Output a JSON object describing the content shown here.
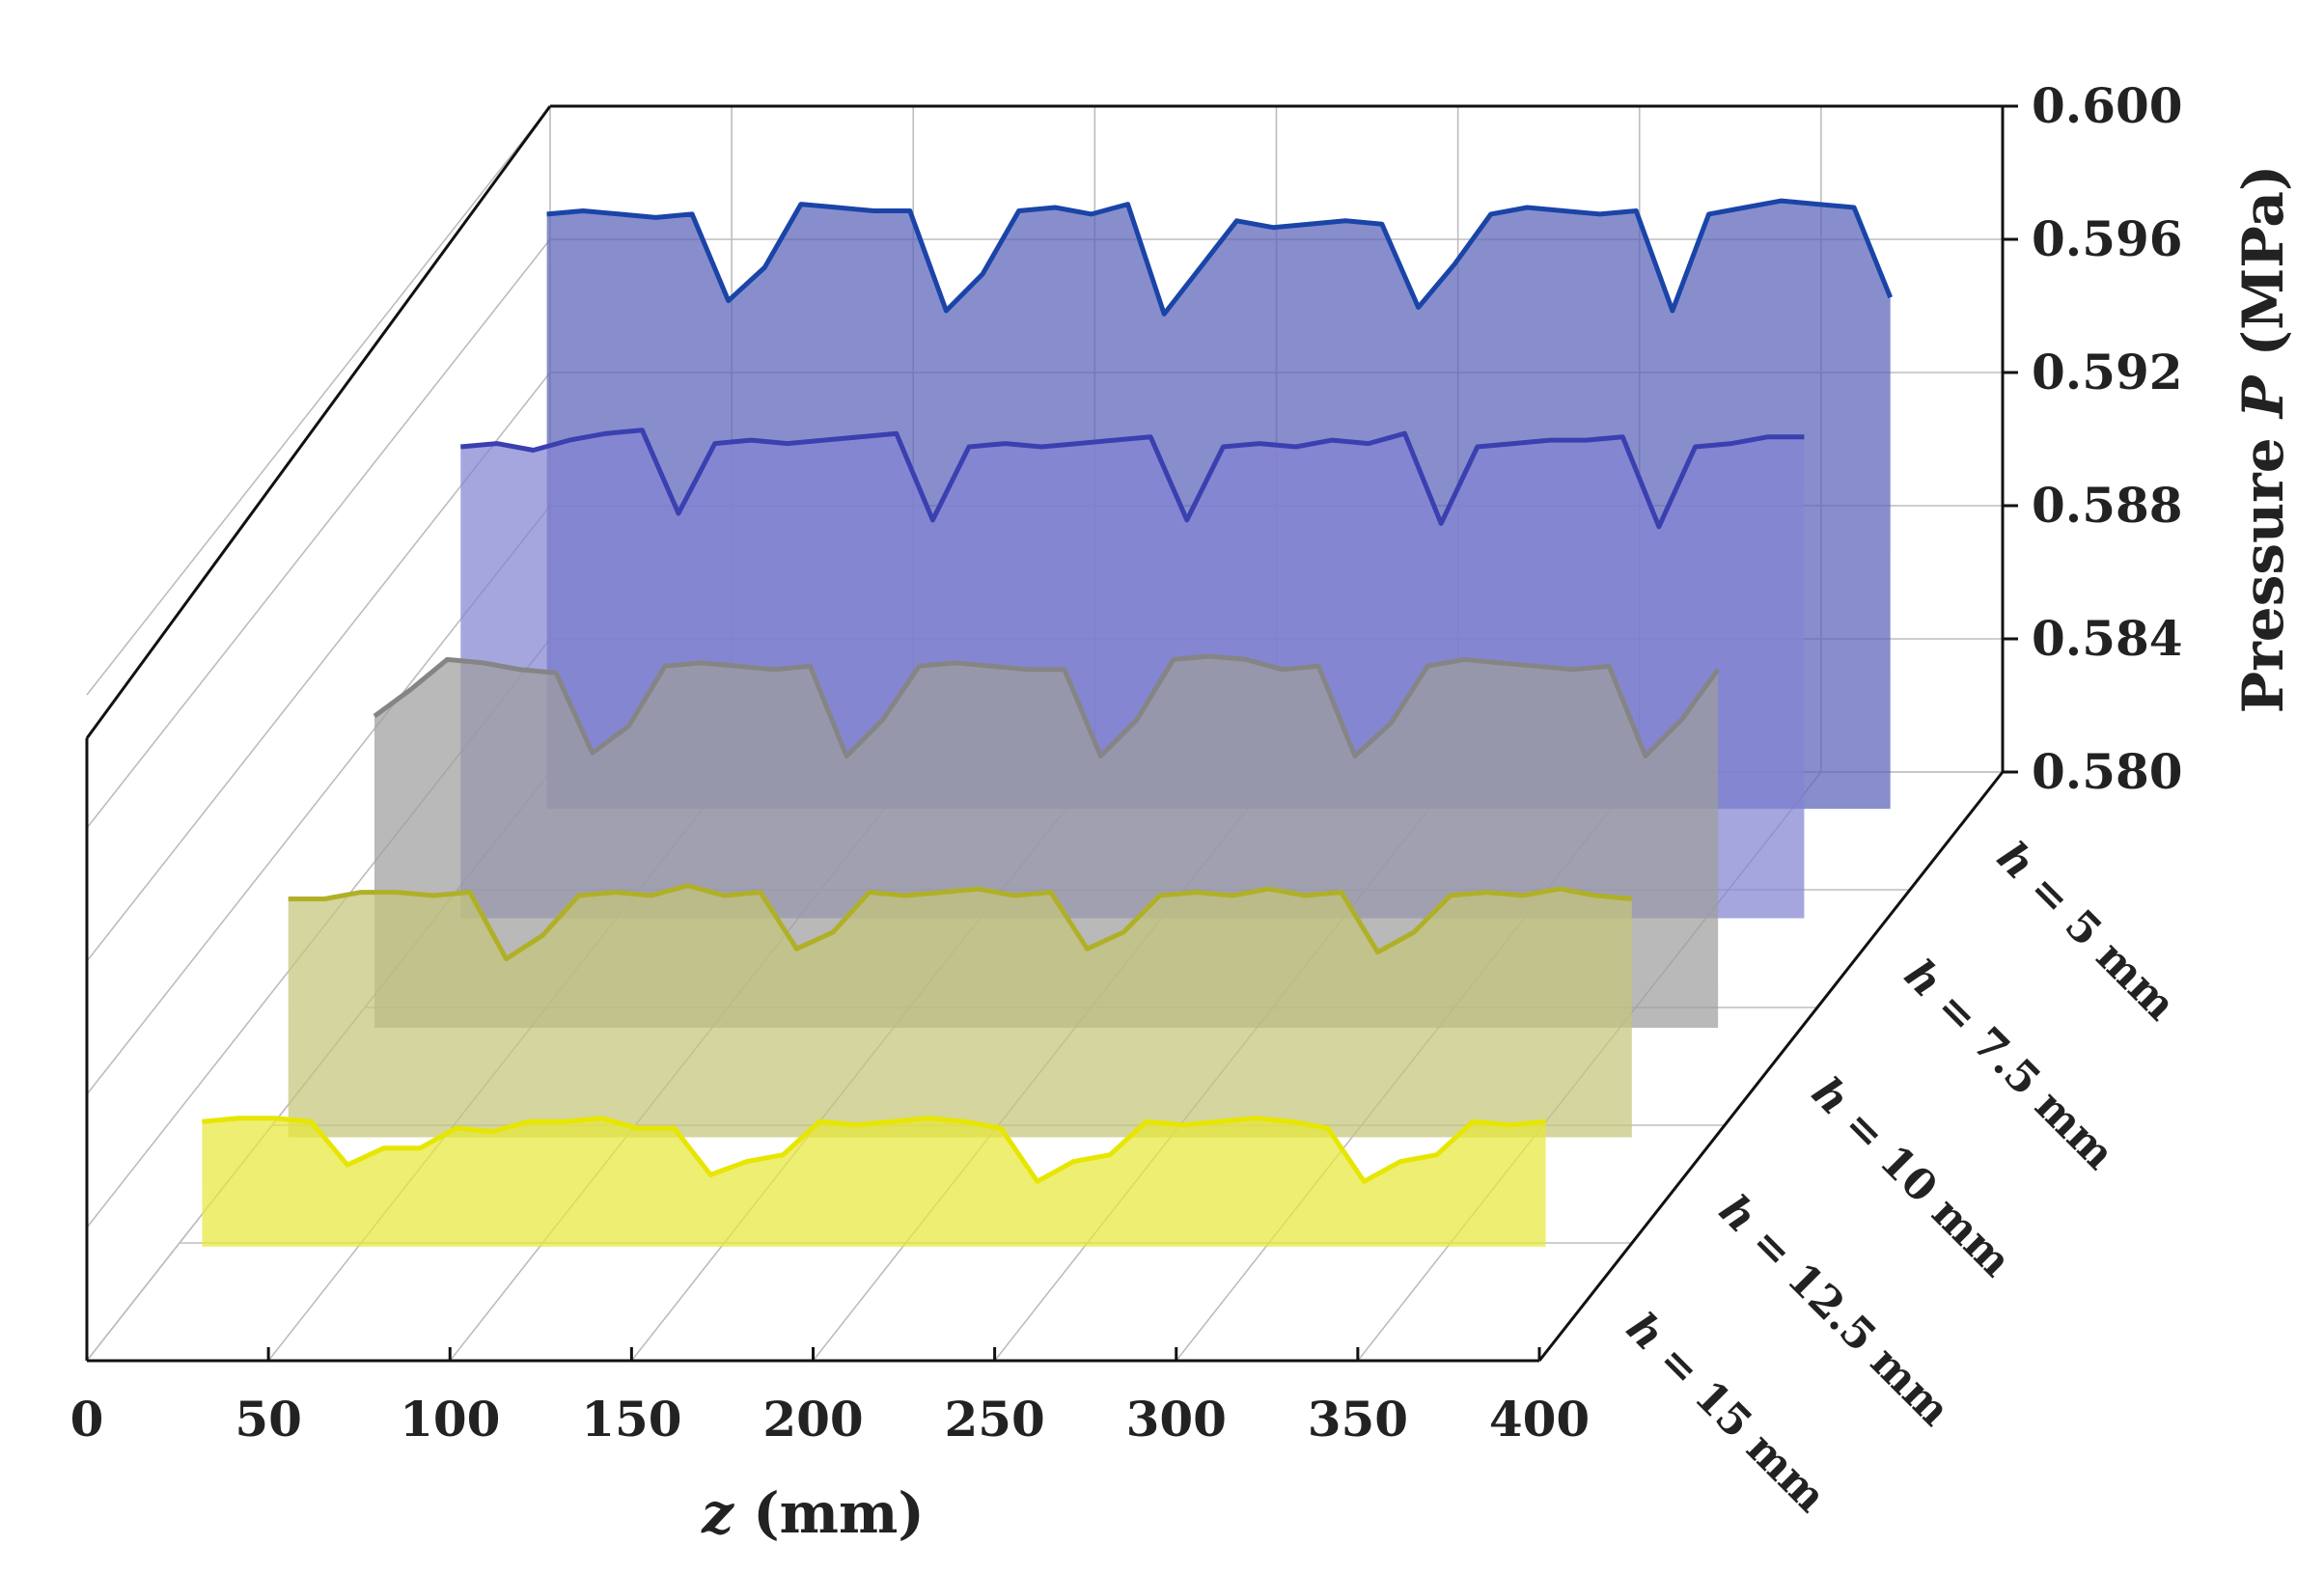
{
  "chart_data": {
    "type": "area",
    "title": "",
    "xlabel_var": "z",
    "xlabel_unit": " (mm)",
    "ylabel_prefix": "Pressure ",
    "ylabel_var": "P",
    "ylabel_unit": " (MPa)",
    "xlim": [
      0,
      400
    ],
    "ylim": [
      0.58,
      0.6
    ],
    "x_ticks": [
      "0",
      "50",
      "100",
      "150",
      "200",
      "250",
      "300",
      "350",
      "400"
    ],
    "y_ticks": [
      "0.580",
      "0.584",
      "0.588",
      "0.592",
      "0.596",
      "0.600"
    ],
    "x": [
      0,
      10,
      20,
      30,
      40,
      50,
      60,
      70,
      80,
      90,
      100,
      110,
      120,
      130,
      140,
      150,
      160,
      170,
      180,
      190,
      200,
      210,
      220,
      230,
      240,
      250,
      260,
      270,
      280,
      290,
      300,
      310,
      320,
      330,
      340,
      350,
      360,
      370
    ],
    "series": [
      {
        "name": "h = 5 mm",
        "label_var": "h",
        "label_rest": " = 5 mm",
        "color": "#1a44a8",
        "fill": "#5a63b9",
        "values": [
          0.5967,
          0.5968,
          0.5967,
          0.5966,
          0.5967,
          0.5941,
          0.5951,
          0.597,
          0.5969,
          0.5968,
          0.5968,
          0.5938,
          0.5949,
          0.5968,
          0.5969,
          0.5967,
          0.597,
          0.5937,
          0.5951,
          0.5965,
          0.5963,
          0.5964,
          0.5965,
          0.5964,
          0.5939,
          0.5952,
          0.5967,
          0.5969,
          0.5968,
          0.5967,
          0.5968,
          0.5938,
          0.5967,
          0.5969,
          0.5971,
          0.597,
          0.5969,
          0.5942
        ]
      },
      {
        "name": "h = 7.5 mm",
        "label_var": "h",
        "label_rest": " = 7.5 mm",
        "color": "#3a40b0",
        "fill": "#8484d2",
        "values": [
          0.593,
          0.5931,
          0.5929,
          0.5932,
          0.5934,
          0.5935,
          0.591,
          0.5931,
          0.5932,
          0.5931,
          0.5932,
          0.5933,
          0.5934,
          0.5908,
          0.593,
          0.5931,
          0.593,
          0.5931,
          0.5932,
          0.5933,
          0.5908,
          0.593,
          0.5931,
          0.593,
          0.5932,
          0.5931,
          0.5934,
          0.5907,
          0.593,
          0.5931,
          0.5932,
          0.5932,
          0.5933,
          0.5906,
          0.593,
          0.5931,
          0.5933,
          0.5933
        ]
      },
      {
        "name": "h = 10 mm",
        "label_var": "h",
        "label_rest": " = 10 mm",
        "color": "#858585",
        "fill": "#9e9e9e",
        "values": [
          0.5882,
          0.589,
          0.5899,
          0.5898,
          0.5896,
          0.5895,
          0.5871,
          0.5879,
          0.5897,
          0.5898,
          0.5897,
          0.5896,
          0.5897,
          0.587,
          0.5881,
          0.5897,
          0.5898,
          0.5897,
          0.5896,
          0.5896,
          0.587,
          0.5881,
          0.5899,
          0.59,
          0.5899,
          0.5896,
          0.5897,
          0.587,
          0.588,
          0.5897,
          0.5899,
          0.5898,
          0.5897,
          0.5896,
          0.5897,
          0.587,
          0.5881,
          0.5896
        ]
      },
      {
        "name": "h = 12.5 mm",
        "label_var": "h",
        "label_rest": " = 12.5 mm",
        "color": "#b0b028",
        "fill": "#c5c57a",
        "values": [
          0.586,
          0.586,
          0.5862,
          0.5862,
          0.5861,
          0.5862,
          0.5842,
          0.5849,
          0.5861,
          0.5862,
          0.5861,
          0.5864,
          0.5861,
          0.5862,
          0.5845,
          0.585,
          0.5862,
          0.5861,
          0.5862,
          0.5863,
          0.5861,
          0.5862,
          0.5845,
          0.585,
          0.5861,
          0.5862,
          0.5861,
          0.5863,
          0.5861,
          0.5862,
          0.5844,
          0.585,
          0.5861,
          0.5862,
          0.5861,
          0.5863,
          0.5861,
          0.586
        ]
      },
      {
        "name": "h = 15 mm",
        "label_var": "h",
        "label_rest": " = 15 mm",
        "color": "#e6e600",
        "fill": "#e8e83c",
        "values": [
          0.5826,
          0.5827,
          0.5827,
          0.5826,
          0.5813,
          0.5818,
          0.5818,
          0.5824,
          0.5823,
          0.5826,
          0.5826,
          0.5827,
          0.5824,
          0.5824,
          0.581,
          0.5814,
          0.5816,
          0.5826,
          0.5825,
          0.5826,
          0.5827,
          0.5826,
          0.5824,
          0.5808,
          0.5814,
          0.5816,
          0.5826,
          0.5825,
          0.5826,
          0.5827,
          0.5826,
          0.5824,
          0.5808,
          0.5814,
          0.5816,
          0.5826,
          0.5825,
          0.5826
        ]
      }
    ]
  }
}
